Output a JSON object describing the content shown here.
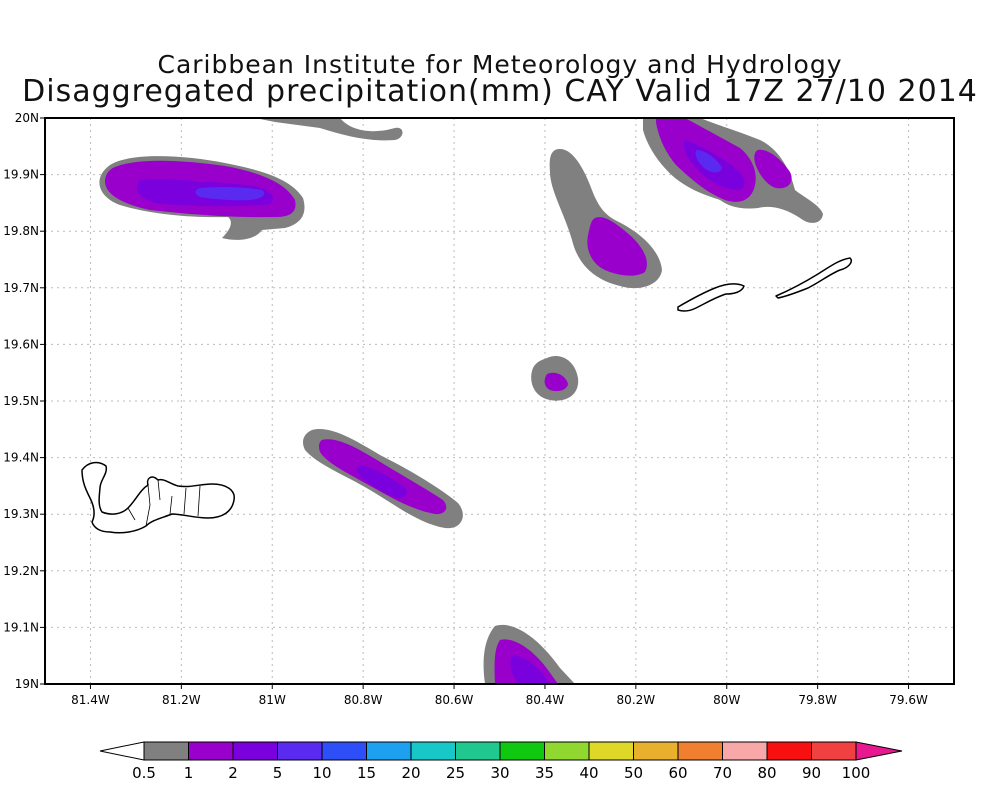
{
  "title": {
    "line1": "Caribbean Institute for Meteorology and Hydrology",
    "line2": "Disaggregated precipitation(mm) CAY Valid 17Z 27/10 2014"
  },
  "map": {
    "lon_range": [
      -81.5,
      -79.5
    ],
    "lat_range": [
      19.0,
      20.0
    ],
    "x_ticks": [
      {
        "lon": -81.4,
        "label": "81.4W"
      },
      {
        "lon": -81.2,
        "label": "81.2W"
      },
      {
        "lon": -81.0,
        "label": "81W"
      },
      {
        "lon": -80.8,
        "label": "80.8W"
      },
      {
        "lon": -80.6,
        "label": "80.6W"
      },
      {
        "lon": -80.4,
        "label": "80.4W"
      },
      {
        "lon": -80.2,
        "label": "80.2W"
      },
      {
        "lon": -80.0,
        "label": "80W"
      },
      {
        "lon": -79.8,
        "label": "79.8W"
      },
      {
        "lon": -79.6,
        "label": "79.6W"
      }
    ],
    "y_ticks": [
      {
        "lat": 20.0,
        "label": "20N"
      },
      {
        "lat": 19.9,
        "label": "19.9N"
      },
      {
        "lat": 19.8,
        "label": "19.8N"
      },
      {
        "lat": 19.7,
        "label": "19.7N"
      },
      {
        "lat": 19.6,
        "label": "19.6N"
      },
      {
        "lat": 19.5,
        "label": "19.5N"
      },
      {
        "lat": 19.4,
        "label": "19.4N"
      },
      {
        "lat": 19.3,
        "label": "19.3N"
      },
      {
        "lat": 19.2,
        "label": "19.2N"
      },
      {
        "lat": 19.1,
        "label": "19.1N"
      },
      {
        "lat": 19.0,
        "label": "19N"
      }
    ],
    "grid": true,
    "islands": [
      "Grand Cayman",
      "Little Cayman",
      "Cayman Brac"
    ]
  },
  "colorbar": {
    "colors": [
      "#ffffff",
      "#808080",
      "#9a00cc",
      "#7a00dd",
      "#5a2af0",
      "#2e4ef8",
      "#1ea0f0",
      "#18c8c8",
      "#20c890",
      "#10c810",
      "#90d830",
      "#e0d828",
      "#e8b02c",
      "#f08030",
      "#f8a8a8",
      "#f81010",
      "#f04040",
      "#e81890"
    ],
    "labels": [
      "0.5",
      "1",
      "2",
      "5",
      "10",
      "15",
      "20",
      "25",
      "30",
      "35",
      "40",
      "50",
      "60",
      "70",
      "80",
      "90",
      "100"
    ]
  }
}
